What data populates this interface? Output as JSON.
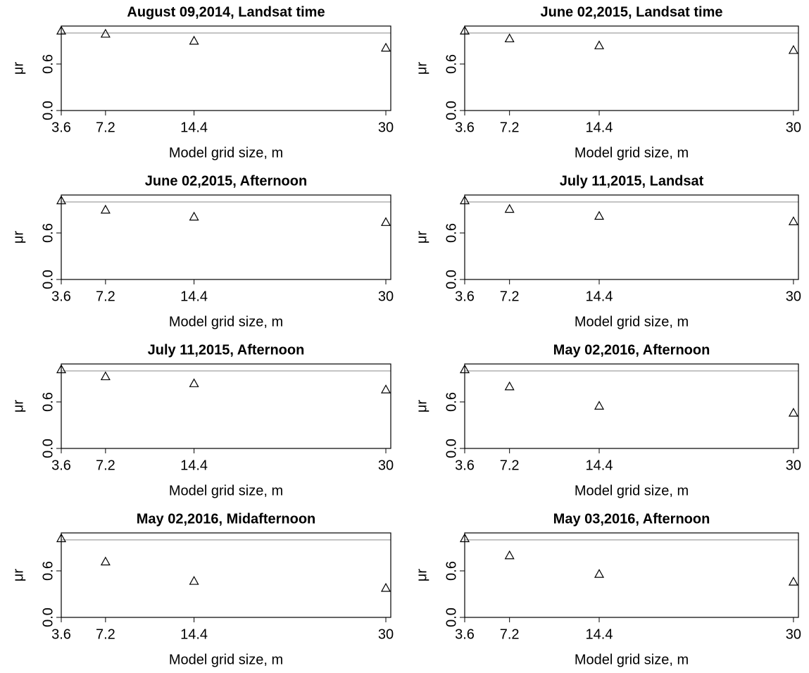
{
  "chart_data": [
    {
      "type": "scatter",
      "title": "August 09,2014, Landsat time",
      "xlabel": "Model grid size, m",
      "ylabel": "μr",
      "x": [
        3.6,
        7.2,
        14.4,
        30
      ],
      "values": [
        1.03,
        0.99,
        0.9,
        0.81
      ],
      "xlim": [
        3.6,
        30.4
      ],
      "ylim": [
        0,
        1.09
      ],
      "xticks": [
        3.6,
        7.2,
        14.4,
        30
      ],
      "yticks": [
        {
          "value": 0,
          "label": "0.0"
        },
        0.6
      ],
      "hline": 1,
      "color": "#000000",
      "hline_color": "#b0b0b0"
    },
    {
      "type": "scatter",
      "title": "June 02,2015, Landsat time",
      "xlabel": "Model grid size, m",
      "ylabel": "μr",
      "x": [
        3.6,
        7.2,
        14.4,
        30
      ],
      "values": [
        1.03,
        0.93,
        0.84,
        0.78
      ],
      "xlim": [
        3.6,
        30.4
      ],
      "ylim": [
        0,
        1.09
      ],
      "xticks": [
        3.6,
        7.2,
        14.4,
        30
      ],
      "yticks": [
        {
          "value": 0,
          "label": "0.0"
        },
        0.6
      ],
      "hline": 1,
      "color": "#000000",
      "hline_color": "#b0b0b0"
    },
    {
      "type": "scatter",
      "title": "June 02,2015, Afternoon",
      "xlabel": "Model grid size, m",
      "ylabel": "μr",
      "x": [
        3.6,
        7.2,
        14.4,
        30
      ],
      "values": [
        1.02,
        0.9,
        0.81,
        0.74
      ],
      "xlim": [
        3.6,
        30.4
      ],
      "ylim": [
        0,
        1.09
      ],
      "xticks": [
        3.6,
        7.2,
        14.4,
        30
      ],
      "yticks": [
        {
          "value": 0,
          "label": "0.0"
        },
        0.6
      ],
      "hline": 1,
      "color": "#000000",
      "hline_color": "#b0b0b0"
    },
    {
      "type": "scatter",
      "title": "July 11,2015, Landsat",
      "xlabel": "Model grid size, m",
      "ylabel": "μr",
      "x": [
        3.6,
        7.2,
        14.4,
        30
      ],
      "values": [
        1.02,
        0.91,
        0.82,
        0.75
      ],
      "xlim": [
        3.6,
        30.4
      ],
      "ylim": [
        0,
        1.09
      ],
      "xticks": [
        3.6,
        7.2,
        14.4,
        30
      ],
      "yticks": [
        {
          "value": 0,
          "label": "0.0"
        },
        0.6
      ],
      "hline": 1,
      "color": "#000000",
      "hline_color": "#b0b0b0"
    },
    {
      "type": "scatter",
      "title": "July 11,2015, Afternoon",
      "xlabel": "Model grid size, m",
      "ylabel": "μr",
      "x": [
        3.6,
        7.2,
        14.4,
        30
      ],
      "values": [
        1.02,
        0.93,
        0.84,
        0.76
      ],
      "xlim": [
        3.6,
        30.4
      ],
      "ylim": [
        0,
        1.09
      ],
      "xticks": [
        3.6,
        7.2,
        14.4,
        30
      ],
      "yticks": [
        {
          "value": 0,
          "label": "0.0"
        },
        0.6
      ],
      "hline": 1,
      "color": "#000000",
      "hline_color": "#b0b0b0"
    },
    {
      "type": "scatter",
      "title": "May 02,2016, Afternoon",
      "xlabel": "Model grid size, m",
      "ylabel": "μr",
      "x": [
        3.6,
        7.2,
        14.4,
        30
      ],
      "values": [
        1.02,
        0.8,
        0.55,
        0.46
      ],
      "xlim": [
        3.6,
        30.4
      ],
      "ylim": [
        0,
        1.09
      ],
      "xticks": [
        3.6,
        7.2,
        14.4,
        30
      ],
      "yticks": [
        {
          "value": 0,
          "label": "0.0"
        },
        0.6
      ],
      "hline": 1,
      "color": "#000000",
      "hline_color": "#b0b0b0"
    },
    {
      "type": "scatter",
      "title": "May 02,2016, Midafternoon",
      "xlabel": "Model grid size, m",
      "ylabel": "μr",
      "x": [
        3.6,
        7.2,
        14.4,
        30
      ],
      "values": [
        1.02,
        0.72,
        0.47,
        0.38
      ],
      "xlim": [
        3.6,
        30.4
      ],
      "ylim": [
        0,
        1.09
      ],
      "xticks": [
        3.6,
        7.2,
        14.4,
        30
      ],
      "yticks": [
        {
          "value": 0,
          "label": "0.0"
        },
        0.6
      ],
      "hline": 1,
      "color": "#000000",
      "hline_color": "#b0b0b0"
    },
    {
      "type": "scatter",
      "title": "May 03,2016, Afternoon",
      "xlabel": "Model grid size, m",
      "ylabel": "μr",
      "x": [
        3.6,
        7.2,
        14.4,
        30
      ],
      "values": [
        1.02,
        0.8,
        0.56,
        0.46
      ],
      "xlim": [
        3.6,
        30.4
      ],
      "ylim": [
        0,
        1.09
      ],
      "xticks": [
        3.6,
        7.2,
        14.4,
        30
      ],
      "yticks": [
        {
          "value": 0,
          "label": "0.0"
        },
        0.6
      ],
      "hline": 1,
      "color": "#000000",
      "hline_color": "#b0b0b0"
    }
  ]
}
